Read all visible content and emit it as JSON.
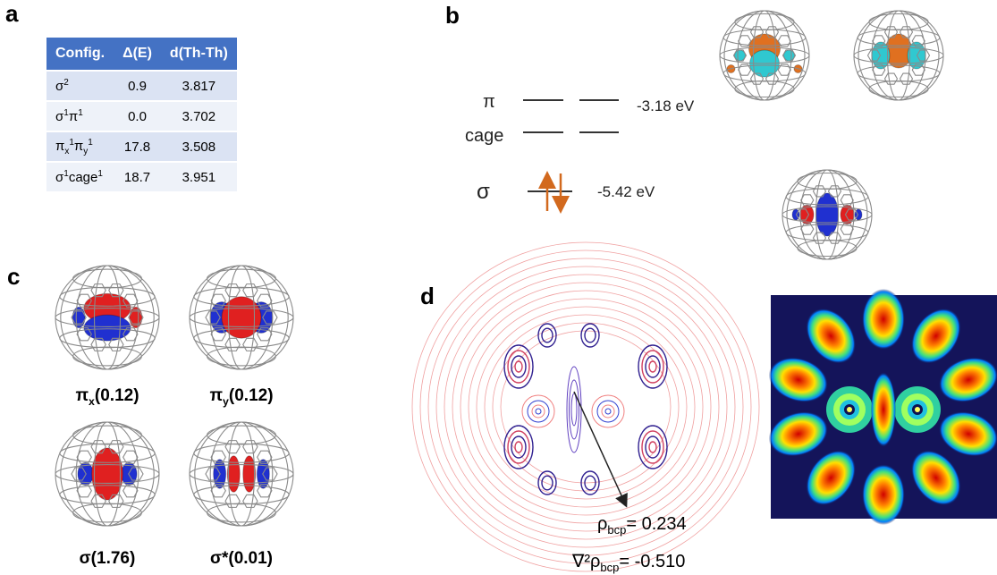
{
  "panels": {
    "a": "a",
    "b": "b",
    "c": "c",
    "d": "d"
  },
  "table": {
    "header": [
      "Config.",
      "Δ(E)",
      "d(Th-Th)"
    ],
    "rows": [
      [
        [
          {
            "t": "σ",
            "sup": "2"
          }
        ],
        "0.9",
        "3.817"
      ],
      [
        [
          {
            "t": "σ",
            "sup": "1"
          },
          {
            "t": "π",
            "sup": "1"
          }
        ],
        "0.0",
        "3.702"
      ],
      [
        [
          {
            "t": "π",
            "sub": "x",
            "sup": "1"
          },
          {
            "t": "π",
            "sub": "y",
            "sup": "1"
          }
        ],
        "17.8",
        "3.508"
      ],
      [
        [
          {
            "t": "σ",
            "sup": "1"
          },
          {
            "t": "cage",
            "sup": "1"
          }
        ],
        "18.7",
        "3.951"
      ]
    ]
  },
  "levels": {
    "pi": "π",
    "cage": "cage",
    "sigma": "σ",
    "pi_energy": "-3.18 eV",
    "sigma_energy": "-5.42 eV"
  },
  "orbitals": [
    {
      "t": "π",
      "sub": "x",
      "occ": "(0.12)"
    },
    {
      "t": "π",
      "sub": "y",
      "occ": "(0.12)"
    },
    {
      "t": "σ",
      "occ": "(1.76)"
    },
    {
      "t": "σ*",
      "occ": "(0.01)"
    }
  ],
  "bcp": [
    {
      "t": "ρ",
      "sub": "bcp",
      "rest": "= 0.234"
    },
    {
      "t": "∇²ρ",
      "sub": "bcp",
      "rest": "= -0.510"
    }
  ]
}
